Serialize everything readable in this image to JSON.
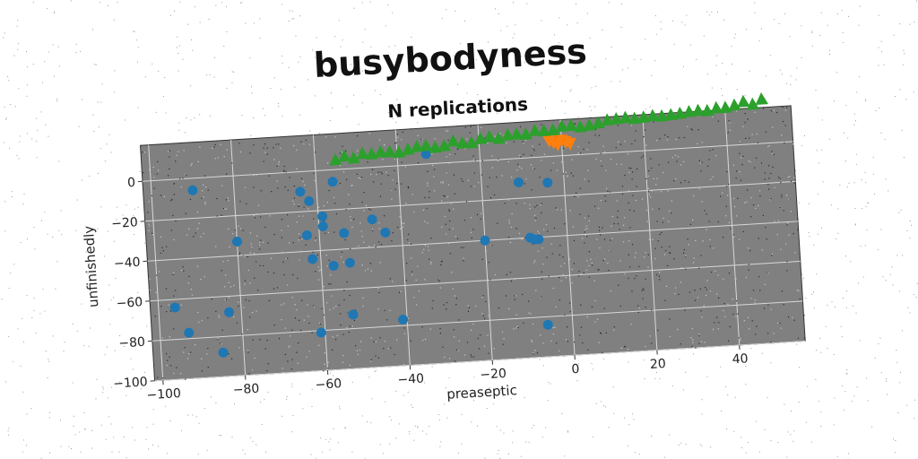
{
  "chart_data": {
    "type": "scatter",
    "title": "busybodyness",
    "subtitle": "N replications",
    "xlabel": "preaseptic",
    "ylabel": "unfinishedly",
    "xlim": [
      -102,
      56
    ],
    "ylim": [
      -100,
      18
    ],
    "xticks": [
      -100,
      -80,
      -60,
      -40,
      -20,
      0,
      20,
      40
    ],
    "yticks": [
      0,
      -20,
      -40,
      -60,
      -80,
      -100
    ],
    "grid": true,
    "background_noise": true,
    "colors": {
      "panel": "#808080",
      "grid": "#d8d8d8",
      "blue": "#1f77b4",
      "orange": "#ff7f0e",
      "green": "#2ca02c"
    },
    "series": [
      {
        "marker": "circle",
        "color": "#1f77b4",
        "points": [
          [
            -90,
            -6
          ],
          [
            -96,
            -64
          ],
          [
            -93,
            -77
          ],
          [
            -85,
            -88
          ],
          [
            -83,
            -68
          ],
          [
            -80,
            -33
          ],
          [
            -64,
            -10
          ],
          [
            -62,
            -15
          ],
          [
            -63,
            -32
          ],
          [
            -62,
            -44
          ],
          [
            -61,
            -81
          ],
          [
            -59,
            -23
          ],
          [
            -59,
            -28
          ],
          [
            -57,
            -48
          ],
          [
            -56,
            -6
          ],
          [
            -54,
            -32
          ],
          [
            -53,
            -47
          ],
          [
            -53,
            -73
          ],
          [
            -47,
            -26
          ],
          [
            -44,
            -33
          ],
          [
            -41,
            -77
          ],
          [
            -33,
            5
          ],
          [
            -20,
            -40
          ],
          [
            -11,
            -12
          ],
          [
            -9,
            -40
          ],
          [
            -8,
            -41
          ],
          [
            -7,
            -41
          ],
          [
            -6,
            -84
          ],
          [
            -4,
            -13
          ]
        ]
      },
      {
        "marker": "triangle-down",
        "color": "#ff7f0e",
        "points": [
          [
            -3,
            8
          ],
          [
            -2,
            7
          ],
          [
            -1,
            6
          ],
          [
            0,
            8
          ],
          [
            1,
            7
          ],
          [
            2,
            6
          ]
        ]
      },
      {
        "marker": "triangle-up",
        "color": "#2ca02c",
        "x_range": [
          -55,
          49
        ],
        "y_range": [
          5,
          21
        ],
        "count": 48
      }
    ]
  }
}
